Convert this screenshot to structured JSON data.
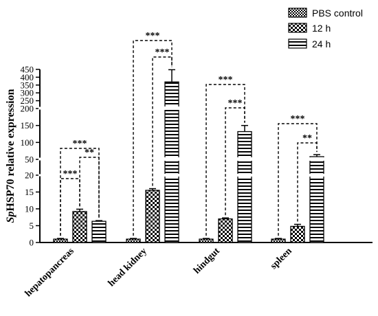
{
  "chart_data": {
    "type": "bar",
    "title": "",
    "xlabel": "",
    "ylabel": {
      "italic": "Sp",
      "rest": "HSP70 relative expression"
    },
    "categories": [
      "hepatopancreas",
      "head kidney",
      "hindgut",
      "spleen"
    ],
    "series": [
      {
        "name": "PBS control",
        "values": [
          1,
          1,
          1,
          1
        ],
        "errors": [
          0.2,
          0.2,
          0.2,
          0.2
        ],
        "fill": "checker-small"
      },
      {
        "name": "12 h",
        "values": [
          9.2,
          15.5,
          7,
          4.8
        ],
        "errors": [
          0.7,
          0.5,
          0.3,
          0.6
        ],
        "fill": "checker-large"
      },
      {
        "name": "24 h",
        "values": [
          6.3,
          370,
          132,
          58
        ],
        "errors": [
          0.2,
          78,
          18,
          6
        ],
        "fill": "horizontal-stripes"
      }
    ],
    "y_axis": {
      "segments": [
        {
          "range": [
            0,
            20
          ],
          "ticks": [
            0,
            5,
            10,
            15,
            20
          ]
        },
        {
          "range": [
            20,
            50
          ],
          "ticks": [
            50
          ]
        },
        {
          "range": [
            50,
            200
          ],
          "ticks": [
            100,
            150,
            200
          ]
        },
        {
          "range": [
            200,
            450
          ],
          "ticks": [
            250,
            300,
            350,
            400,
            450
          ]
        }
      ]
    },
    "significance": [
      {
        "category": 0,
        "pairs": [
          [
            1,
            2,
            "**"
          ],
          [
            0,
            1,
            "***"
          ],
          [
            0,
            2,
            "***"
          ]
        ]
      },
      {
        "category": 1,
        "pairs": [
          [
            1,
            2,
            "***"
          ],
          [
            0,
            2,
            "***"
          ]
        ]
      },
      {
        "category": 2,
        "pairs": [
          [
            1,
            2,
            "***"
          ],
          [
            0,
            2,
            "***"
          ]
        ]
      },
      {
        "category": 3,
        "pairs": [
          [
            1,
            2,
            "**"
          ],
          [
            0,
            2,
            "***"
          ]
        ]
      }
    ],
    "legend_position": "top-right",
    "grid": false
  }
}
